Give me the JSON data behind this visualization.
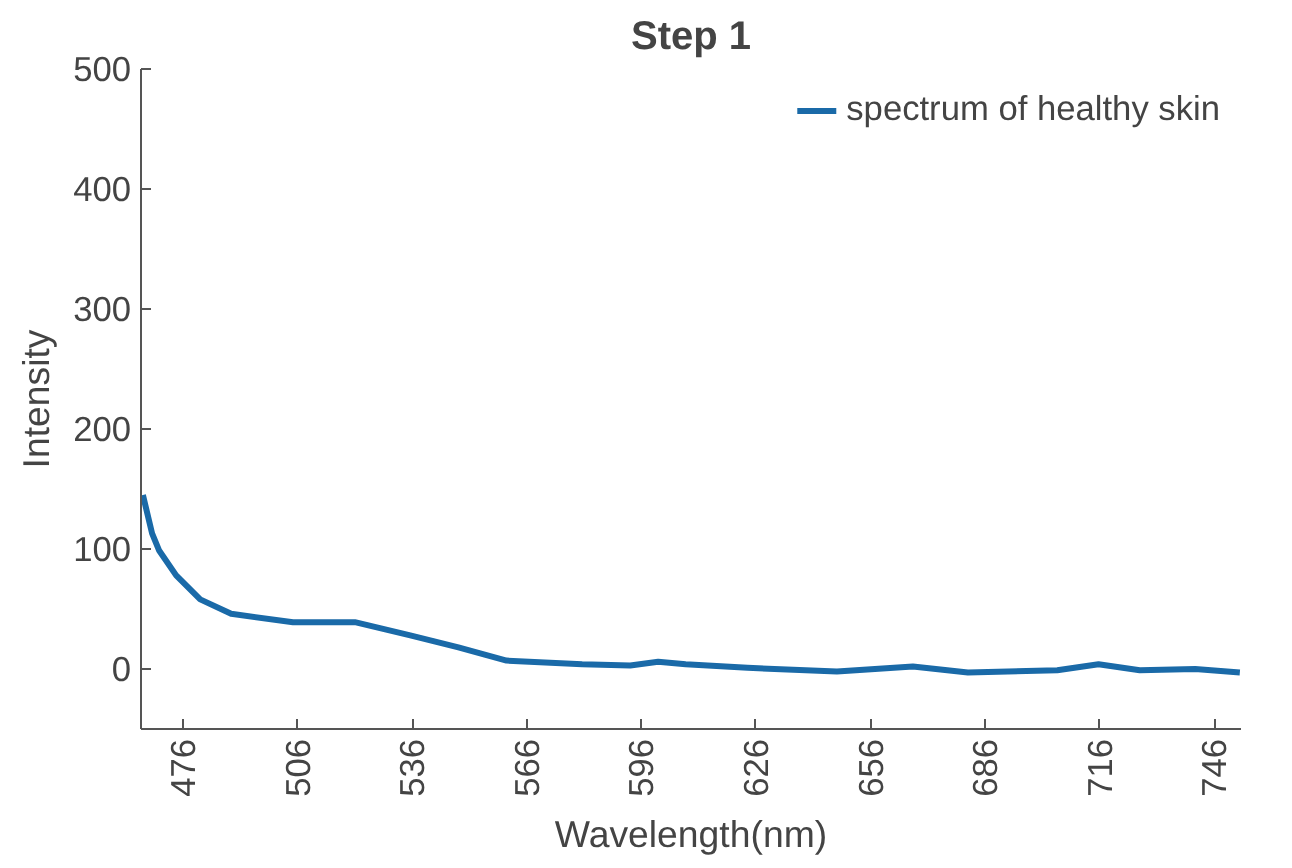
{
  "chart_data": {
    "type": "line",
    "title": "Step 1",
    "xlabel": "Wavelength(nm)",
    "ylabel": "Intensity",
    "series": [
      {
        "name": "spectrum of healthy skin",
        "color": "#1a6aa8",
        "x": [
          465.5,
          467.9,
          469.7,
          474.2,
          480.5,
          488.6,
          504.8,
          521,
          535.5,
          548.1,
          560.7,
          580.5,
          593.1,
          600.4,
          607.6,
          623.8,
          647.2,
          667.1,
          681.5,
          704.9,
          715.7,
          726.5,
          741,
          752.7
        ],
        "values": [
          145,
          113,
          99,
          78,
          58,
          46,
          39,
          39,
          28,
          18,
          7,
          4,
          3,
          6,
          4,
          1,
          -2,
          2,
          -3,
          -1,
          4,
          -1,
          0,
          -3
        ]
      }
    ],
    "xlim": [
      465,
      753
    ],
    "xticks": [
      476,
      506,
      536,
      566,
      596,
      626,
      656,
      686,
      716,
      746
    ],
    "ylim": [
      -50,
      500
    ],
    "yticks": [
      0,
      100,
      200,
      300,
      400,
      500
    ],
    "grid": false,
    "legend": "top right",
    "line_style": "solid"
  }
}
